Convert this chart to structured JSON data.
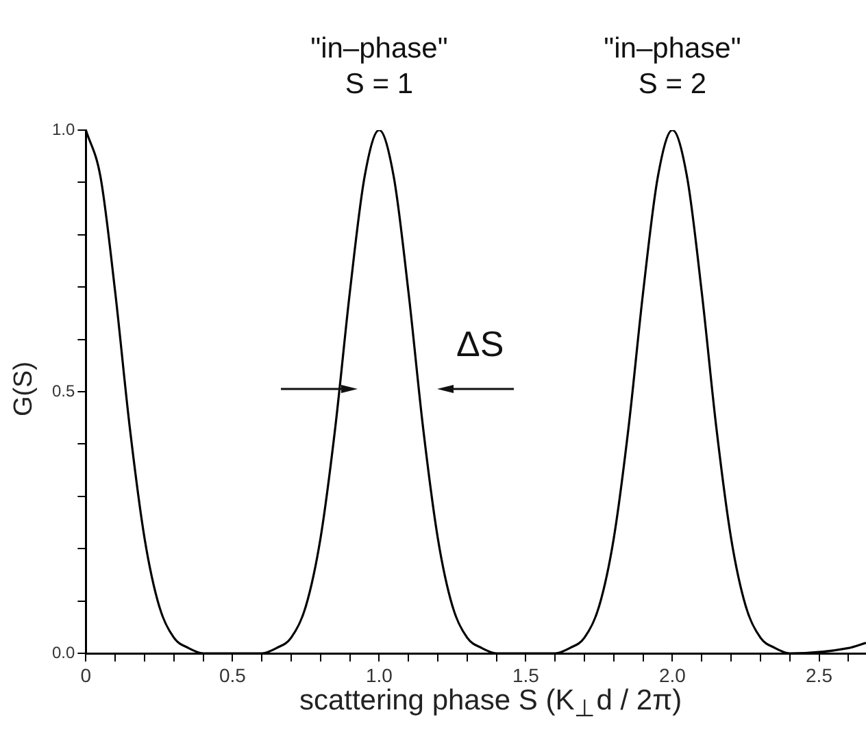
{
  "chart_data": {
    "type": "line",
    "xlabel": "scattering phase S (K$_{⊥}$d / 2π)",
    "ylabel": "G(S)",
    "x": [
      0,
      0.05,
      0.1,
      0.15,
      0.2,
      0.25,
      0.3,
      0.35,
      0.4,
      0.6,
      0.65,
      0.7,
      0.75,
      0.8,
      0.85,
      0.9,
      0.95,
      1,
      1.05,
      1.1,
      1.15,
      1.2,
      1.25,
      1.3,
      1.35,
      1.4,
      1.6,
      1.65,
      1.7,
      1.75,
      1.8,
      1.85,
      1.9,
      1.95,
      2,
      2.05,
      2.1,
      2.15,
      2.2,
      2.25,
      2.3,
      2.35,
      2.4,
      2.6,
      2.66
    ],
    "series": [
      {
        "color": "#000000",
        "values": [
          1,
          0.91,
          0.69,
          0.43,
          0.22,
          0.09,
          0.03,
          0.01,
          0,
          0,
          0.01,
          0.03,
          0.09,
          0.22,
          0.43,
          0.69,
          0.91,
          1,
          0.91,
          0.69,
          0.43,
          0.22,
          0.09,
          0.03,
          0.01,
          0,
          0,
          0.01,
          0.03,
          0.09,
          0.22,
          0.43,
          0.69,
          0.91,
          1,
          0.91,
          0.69,
          0.43,
          0.22,
          0.09,
          0.03,
          0.01,
          0,
          0.01,
          0.02
        ]
      }
    ],
    "xlim": [
      0,
      2.66
    ],
    "xticks": [
      0,
      {
        "value": 0.1,
        "label": null
      },
      {
        "value": 0.2,
        "label": null
      },
      {
        "value": 0.3,
        "label": null
      },
      {
        "value": 0.4,
        "label": null
      },
      0.5,
      {
        "value": 0.6,
        "label": null
      },
      {
        "value": 0.7,
        "label": null
      },
      {
        "value": 0.8,
        "label": null
      },
      {
        "value": 0.9,
        "label": null
      },
      {
        "value": 1,
        "label": "1.0"
      },
      {
        "value": 1.1,
        "label": null
      },
      {
        "value": 1.2,
        "label": null
      },
      {
        "value": 1.3,
        "label": null
      },
      {
        "value": 1.4,
        "label": null
      },
      1.5,
      {
        "value": 1.6,
        "label": null
      },
      {
        "value": 1.7,
        "label": null
      },
      {
        "value": 1.8,
        "label": null
      },
      {
        "value": 1.9,
        "label": null
      },
      {
        "value": 2,
        "label": "2.0"
      },
      {
        "value": 2.1,
        "label": null
      },
      {
        "value": 2.2,
        "label": null
      },
      {
        "value": 2.3,
        "label": null
      },
      {
        "value": 2.4,
        "label": null
      },
      2.5,
      {
        "value": 2.6,
        "label": null
      }
    ],
    "ylim": [
      0,
      1
    ],
    "yticks": [
      {
        "value": 0,
        "label": "0.0"
      },
      {
        "value": 0.1,
        "label": null
      },
      {
        "value": 0.2,
        "label": null
      },
      {
        "value": 0.3,
        "label": null
      },
      {
        "value": 0.4,
        "label": null
      },
      0.5,
      {
        "value": 0.6,
        "label": null
      },
      {
        "value": 0.7,
        "label": null
      },
      {
        "value": 0.8,
        "label": null
      },
      {
        "value": 0.9,
        "label": null
      },
      {
        "value": 1,
        "label": "1.0"
      }
    ],
    "annotations": [
      {
        "text": "\"in–phase\"\nS = 1",
        "x": 1,
        "y": 1
      },
      {
        "text": "\"in–phase\"\nS = 2",
        "x": 2,
        "y": 1
      },
      "ΔS"
    ],
    "grid": false,
    "legend": false
  }
}
